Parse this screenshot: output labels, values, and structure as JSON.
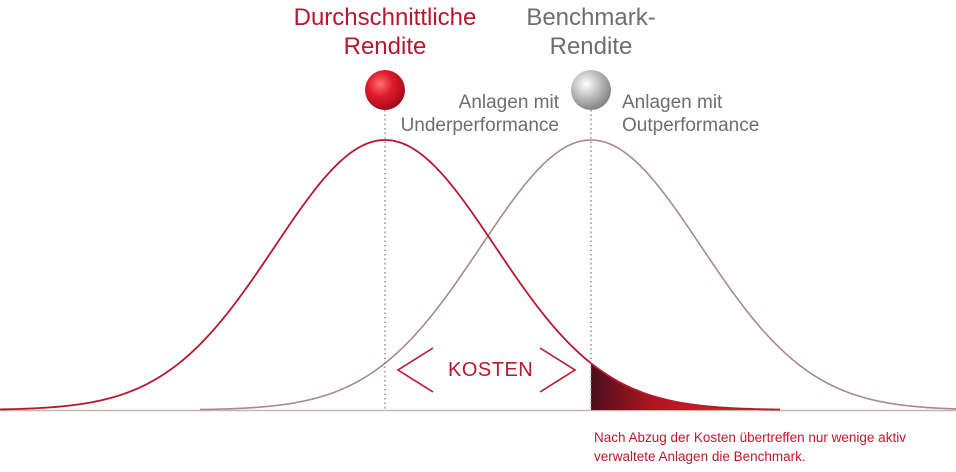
{
  "labels": {
    "avg_return": "Durchschnittliche\nRendite",
    "benchmark_return": "Benchmark-\nRendite",
    "underperformance": "Anlagen mit\nUnderperformance",
    "outperformance": "Anlagen mit\nOutperformance",
    "costs": "KOSTEN",
    "note": "Nach Abzug der Kosten übertreffen nur wenige aktiv verwaltete Anlagen die Benchmark."
  },
  "colors": {
    "red": "#b5182e",
    "gray_text": "#6e6e6e",
    "gray_curve": "#a88a8e",
    "axis": "#c9b7a9",
    "dotted": "#777777"
  }
}
